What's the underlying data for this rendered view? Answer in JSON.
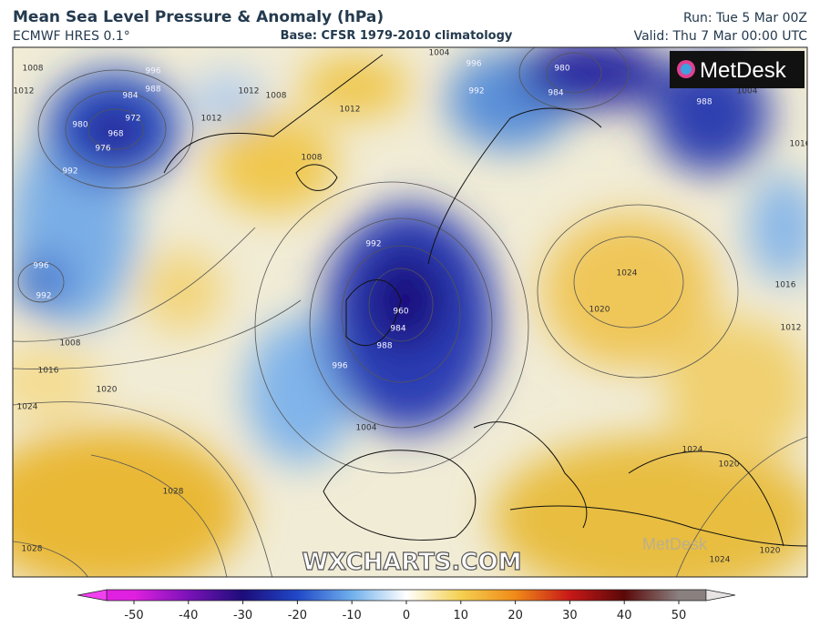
{
  "header": {
    "title": "Mean Sea Level Pressure & Anomaly (hPa)",
    "model": "ECMWF HRES 0.1°",
    "base": "Base: CFSR 1979-2010 climatology",
    "run": "Run: Tue 5 Mar 00Z",
    "valid": "Valid: Thu 7 Mar 00:00 UTC"
  },
  "map": {
    "logo": "MetDesk",
    "watermark": "WXCHARTS.COM",
    "faint_logo": "MetDesk",
    "contour_labels": [
      "1008",
      "996",
      "984",
      "988",
      "972",
      "968",
      "976",
      "980",
      "992",
      "1012",
      "1012",
      "1012",
      "1008",
      "1008",
      "1012",
      "1004",
      "996",
      "992",
      "980",
      "984",
      "988",
      "1004",
      "1016",
      "1024",
      "1020",
      "1016",
      "1012",
      "992",
      "960",
      "984",
      "988",
      "996",
      "1004",
      "996",
      "992",
      "1008",
      "1016",
      "1020",
      "1024",
      "1028",
      "1028",
      "1024",
      "1020",
      "1020",
      "1024"
    ]
  },
  "colorbar": {
    "lim": [
      -55,
      55
    ],
    "ticks": [
      -50,
      -40,
      -30,
      -20,
      -10,
      0,
      10,
      20,
      30,
      40,
      50
    ],
    "colors": [
      "#e020e0",
      "#7a12b8",
      "#1c0c7a",
      "#2048c8",
      "#70b0ec",
      "#ffffff",
      "#f4d050",
      "#f08a18",
      "#c81818",
      "#5a0808",
      "#8a8080"
    ]
  }
}
